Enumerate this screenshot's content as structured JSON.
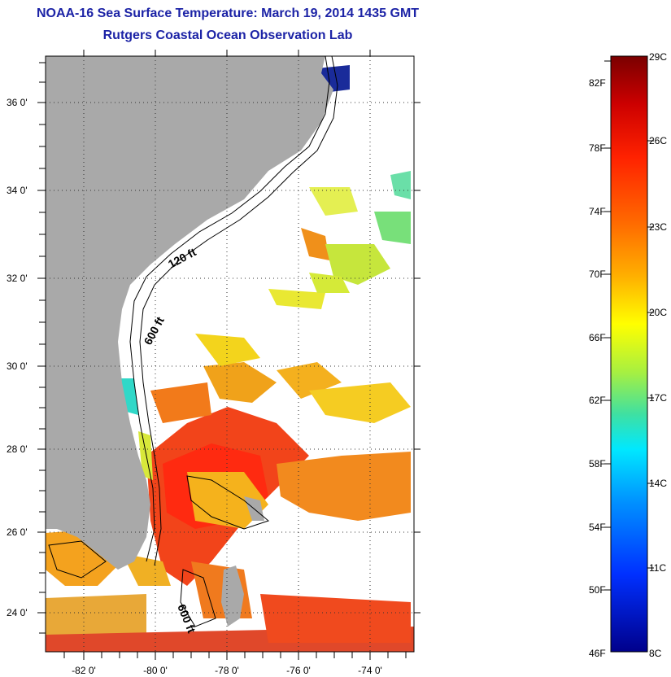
{
  "title": {
    "line1": "NOAA-16 Sea Surface Temperature:  March 19, 2014 1435 GMT",
    "line2": "Rutgers Coastal Ocean Observation Lab"
  },
  "map": {
    "lon_labels": [
      "-82 0'",
      "-80 0'",
      "-78 0'",
      "-76 0'",
      "-74 0'"
    ],
    "lat_labels": [
      "36 0'",
      "34 0'",
      "32 0'",
      "30 0'",
      "28 0'",
      "26 0'",
      "24 0'"
    ],
    "contours": [
      "120 ft",
      "600 ft",
      "600 ft"
    ],
    "colors": {
      "land": "#a9a9a9",
      "cloud": "#ffffff",
      "frame": "#000000"
    }
  },
  "colorbar": {
    "fahrenheit": [
      "82F",
      "78F",
      "74F",
      "70F",
      "66F",
      "62F",
      "58F",
      "54F",
      "50F",
      "46F"
    ],
    "celsius": [
      "29C",
      "26C",
      "23C",
      "20C",
      "17C",
      "14C",
      "11C",
      "8C"
    ],
    "gradient": [
      "#7a0000",
      "#cc0000",
      "#ff2200",
      "#ff6a00",
      "#ffb000",
      "#ffff00",
      "#a8f040",
      "#40e0a0",
      "#00e8ff",
      "#0090ff",
      "#0030ff",
      "#00008b"
    ]
  }
}
